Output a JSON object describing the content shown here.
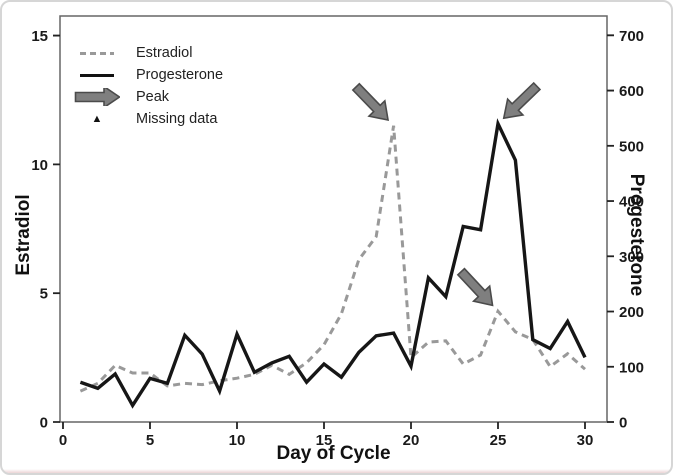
{
  "figure": {
    "background": "#ffffff",
    "border_color": "#d6d6d6"
  },
  "legend": {
    "items": [
      {
        "label": "Estradiol",
        "swatch": "dashed-gray-line"
      },
      {
        "label": "Progesterone",
        "swatch": "solid-black-line"
      },
      {
        "label": "Peak",
        "swatch": "gray-arrow"
      },
      {
        "label": "Missing data",
        "swatch": "black-triangle"
      }
    ]
  },
  "chart_data": {
    "type": "line",
    "xlabel": "Day of Cycle",
    "x_ticks": [
      0,
      5,
      10,
      15,
      20,
      25,
      30
    ],
    "xlim": [
      0,
      31.4
    ],
    "x": [
      1,
      2,
      3,
      4,
      5,
      6,
      7,
      8,
      9,
      10,
      11,
      12,
      13,
      14,
      15,
      16,
      17,
      18,
      19,
      20,
      21,
      22,
      23,
      24,
      25,
      26,
      27,
      28,
      29,
      30
    ],
    "axes": {
      "left": {
        "label": "Estradiol",
        "ticks": [
          0,
          5,
          10,
          15
        ],
        "lim": [
          0,
          15.76
        ]
      },
      "right": {
        "label": "Progesterone",
        "ticks": [
          0,
          100,
          200,
          300,
          400,
          500,
          600,
          700
        ],
        "lim": [
          0,
          735
        ]
      }
    },
    "grid": false,
    "legend_position": "upper-left-inside",
    "series": [
      {
        "name": "Estradiol",
        "axis": "left",
        "style": "dashed",
        "color": "#999999",
        "values": [
          1.2,
          1.5,
          2.2,
          1.9,
          1.9,
          1.4,
          1.5,
          1.45,
          1.6,
          1.7,
          1.85,
          2.2,
          1.85,
          2.3,
          3.0,
          4.2,
          6.3,
          7.2,
          11.5,
          2.5,
          3.1,
          3.15,
          2.25,
          2.6,
          4.3,
          3.5,
          3.2,
          2.15,
          2.65,
          2.05
        ]
      },
      {
        "name": "Progesterone",
        "axis": "right",
        "style": "solid",
        "color": "#161616",
        "values": [
          72,
          61,
          87,
          30,
          79,
          70,
          157,
          123,
          56,
          159,
          90,
          107,
          119,
          72,
          105,
          81,
          126,
          156,
          161,
          101,
          261,
          227,
          354,
          348,
          540,
          474,
          149,
          133,
          182,
          117
        ]
      }
    ],
    "annotations": [
      {
        "type": "arrow",
        "label": "Peak",
        "series": "Estradiol",
        "day": 19,
        "value": 11.5,
        "angle_deg": 46,
        "fill": "#7f7f7f",
        "stroke": "#4b4b4b"
      },
      {
        "type": "arrow",
        "label": "Peak",
        "series": "Progesterone",
        "day": 25,
        "value": 540,
        "angle_deg": 136,
        "fill": "#7f7f7f",
        "stroke": "#4b4b4b"
      },
      {
        "type": "arrow",
        "label": "Peak",
        "series": "Estradiol",
        "day": 25,
        "value": 4.3,
        "angle_deg": 47,
        "fill": "#7f7f7f",
        "stroke": "#4b4b4b"
      }
    ]
  }
}
